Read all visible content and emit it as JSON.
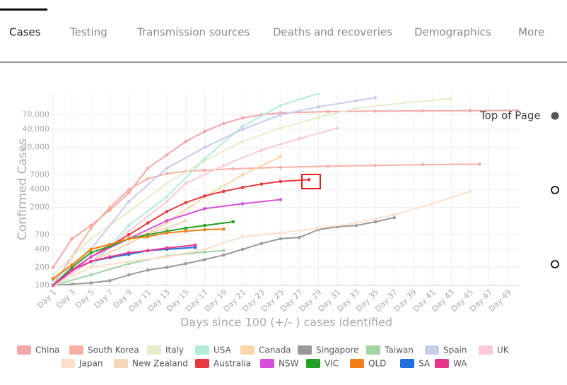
{
  "tabs": [
    "Cases",
    "Testing",
    "Transmission sources",
    "Deaths and recoveries",
    "Demographics",
    "More"
  ],
  "side_nav": {
    "label": "Top of Page"
  },
  "chart_data": {
    "type": "line",
    "y_label": "Confirmed Cases",
    "x_label": "Days since 100 (+/- ) cases identified",
    "log_y": true,
    "grid": true,
    "xlim": [
      1,
      50
    ],
    "xticks": [
      {
        "value": 1,
        "label": "Day 1"
      },
      {
        "value": 3,
        "label": "Day 3"
      },
      {
        "value": 5,
        "label": "Day 5"
      },
      {
        "value": 7,
        "label": "Day 7"
      },
      {
        "value": 9,
        "label": "Day 9"
      },
      {
        "value": 11,
        "label": "Day 11"
      },
      {
        "value": 13,
        "label": "Day 13"
      },
      {
        "value": 15,
        "label": "Day 15"
      },
      {
        "value": 17,
        "label": "Day 17"
      },
      {
        "value": 19,
        "label": "Day 19"
      },
      {
        "value": 21,
        "label": "Day 21"
      },
      {
        "value": 23,
        "label": "Day 23"
      },
      {
        "value": 25,
        "label": "Day 25"
      },
      {
        "value": 27,
        "label": "Day 27"
      },
      {
        "value": 29,
        "label": "Day 29"
      },
      {
        "value": 31,
        "label": "Day 31"
      },
      {
        "value": 33,
        "label": "Day 33"
      },
      {
        "value": 35,
        "label": "Day 35"
      },
      {
        "value": 37,
        "label": "Day 37"
      },
      {
        "value": 39,
        "label": "Day 39"
      },
      {
        "value": 41,
        "label": "Day 41"
      },
      {
        "value": 43,
        "label": "Day 43"
      },
      {
        "value": 45,
        "label": "Day 45"
      },
      {
        "value": 47,
        "label": "Day 47"
      },
      {
        "value": 49,
        "label": "Day 49"
      }
    ],
    "ylim": [
      100,
      160000
    ],
    "yticks": [
      100,
      200,
      400,
      700,
      2000,
      4000,
      7000,
      {
        "value": 20000,
        "label": "20,000"
      },
      {
        "value": 40000,
        "label": "40,000"
      },
      {
        "value": 70000,
        "label": "70,000"
      }
    ],
    "series": [
      {
        "name": "China",
        "color": "#f4a7a9",
        "x": [
          1,
          3,
          5,
          7,
          9,
          11,
          13,
          15,
          17,
          19,
          21,
          23,
          25,
          30,
          35,
          40,
          45,
          50
        ],
        "values": [
          200,
          600,
          1000,
          1800,
          3500,
          9000,
          15000,
          25000,
          37000,
          50000,
          62000,
          70000,
          75000,
          79000,
          80500,
          81500,
          82000,
          82500
        ]
      },
      {
        "name": "South Korea",
        "color": "#f7b0a4",
        "x": [
          1,
          3,
          5,
          7,
          9,
          11,
          13,
          15,
          17,
          20,
          25,
          30,
          35,
          40,
          46
        ],
        "values": [
          100,
          300,
          900,
          2000,
          4000,
          6000,
          7300,
          8000,
          8300,
          8800,
          9300,
          9700,
          10000,
          10300,
          10500
        ]
      },
      {
        "name": "Italy",
        "color": "#e4eec9",
        "x": [
          1,
          5,
          9,
          13,
          17,
          21,
          25,
          29,
          33,
          38,
          43
        ],
        "values": [
          150,
          600,
          1700,
          5000,
          12000,
          25000,
          42000,
          63000,
          90000,
          110000,
          130000
        ]
      },
      {
        "name": "USA",
        "color": "#b3ebda",
        "x": [
          1,
          5,
          9,
          13,
          17,
          21,
          25,
          29
        ],
        "values": [
          100,
          200,
          1000,
          3000,
          13000,
          45000,
          100000,
          160000
        ]
      },
      {
        "name": "Canada",
        "color": "#fcd5a6",
        "x": [
          1,
          5,
          9,
          13,
          17,
          21,
          25
        ],
        "values": [
          100,
          250,
          500,
          1100,
          3000,
          7000,
          14000
        ]
      },
      {
        "name": "Singapore",
        "color": "#999999",
        "x": [
          1,
          3,
          5,
          7,
          9,
          11,
          13,
          15,
          17,
          19,
          21,
          23,
          25,
          27,
          29,
          31,
          33,
          35,
          37
        ],
        "values": [
          100,
          105,
          110,
          120,
          150,
          180,
          200,
          230,
          270,
          320,
          400,
          500,
          600,
          630,
          850,
          950,
          1000,
          1150,
          1350
        ]
      },
      {
        "name": "Taiwan",
        "color": "#a3d4a4",
        "x": [
          1,
          5,
          9,
          13,
          17,
          19
        ],
        "values": [
          100,
          150,
          230,
          310,
          360,
          380
        ]
      },
      {
        "name": "Spain",
        "color": "#c7cdeb",
        "x": [
          1,
          5,
          9,
          13,
          17,
          21,
          25,
          29,
          33,
          35
        ],
        "values": [
          120,
          400,
          2500,
          9000,
          20000,
          40000,
          70000,
          95000,
          120000,
          135000
        ]
      },
      {
        "name": "UK",
        "color": "#fac9da",
        "x": [
          1,
          5,
          9,
          13,
          15,
          19,
          23,
          27,
          31
        ],
        "values": [
          100,
          250,
          800,
          2500,
          5000,
          10000,
          18000,
          28000,
          42000
        ]
      },
      {
        "name": "Japan",
        "color": "#fde0c9",
        "x": [
          1,
          5,
          9,
          13,
          17,
          21,
          25,
          29,
          33,
          37,
          41,
          45
        ],
        "values": [
          100,
          200,
          250,
          300,
          400,
          650,
          750,
          900,
          1100,
          1500,
          2300,
          3700
        ]
      },
      {
        "name": "New Zealand",
        "color": "#f2d7b8",
        "x": [
          1,
          5,
          9,
          13,
          15
        ],
        "values": [
          100,
          400,
          600,
          900,
          1200
        ]
      },
      {
        "name": "Australia",
        "color": "#e53a40",
        "x": [
          1,
          3,
          5,
          7,
          9,
          11,
          13,
          15,
          17,
          19,
          21,
          23,
          25,
          28
        ],
        "values": [
          100,
          180,
          300,
          450,
          700,
          1100,
          1700,
          2400,
          3100,
          3700,
          4300,
          4900,
          5400,
          5800
        ]
      },
      {
        "name": "NSW",
        "color": "#d84fdb",
        "x": [
          1,
          5,
          9,
          13,
          17,
          21,
          25
        ],
        "values": [
          100,
          300,
          600,
          1200,
          1900,
          2300,
          2700
        ]
      },
      {
        "name": "VIC",
        "color": "#24a024",
        "x": [
          1,
          3,
          5,
          7,
          9,
          11,
          13,
          15,
          17,
          20
        ],
        "values": [
          100,
          200,
          350,
          450,
          600,
          700,
          800,
          900,
          1000,
          1150
        ]
      },
      {
        "name": "QLD",
        "color": "#f17f15",
        "x": [
          1,
          3,
          5,
          7,
          9,
          11,
          13,
          15,
          17,
          19
        ],
        "values": [
          130,
          220,
          400,
          480,
          600,
          650,
          750,
          800,
          850,
          870
        ]
      },
      {
        "name": "SA",
        "color": "#1f6fe3",
        "x": [
          1,
          3,
          5,
          7,
          9,
          11,
          13,
          16
        ],
        "values": [
          100,
          180,
          250,
          290,
          330,
          380,
          400,
          430
        ]
      },
      {
        "name": "WA",
        "color": "#e8368c",
        "x": [
          1,
          3,
          5,
          7,
          9,
          11,
          13,
          16
        ],
        "values": [
          100,
          180,
          250,
          300,
          350,
          380,
          420,
          470
        ]
      }
    ]
  }
}
